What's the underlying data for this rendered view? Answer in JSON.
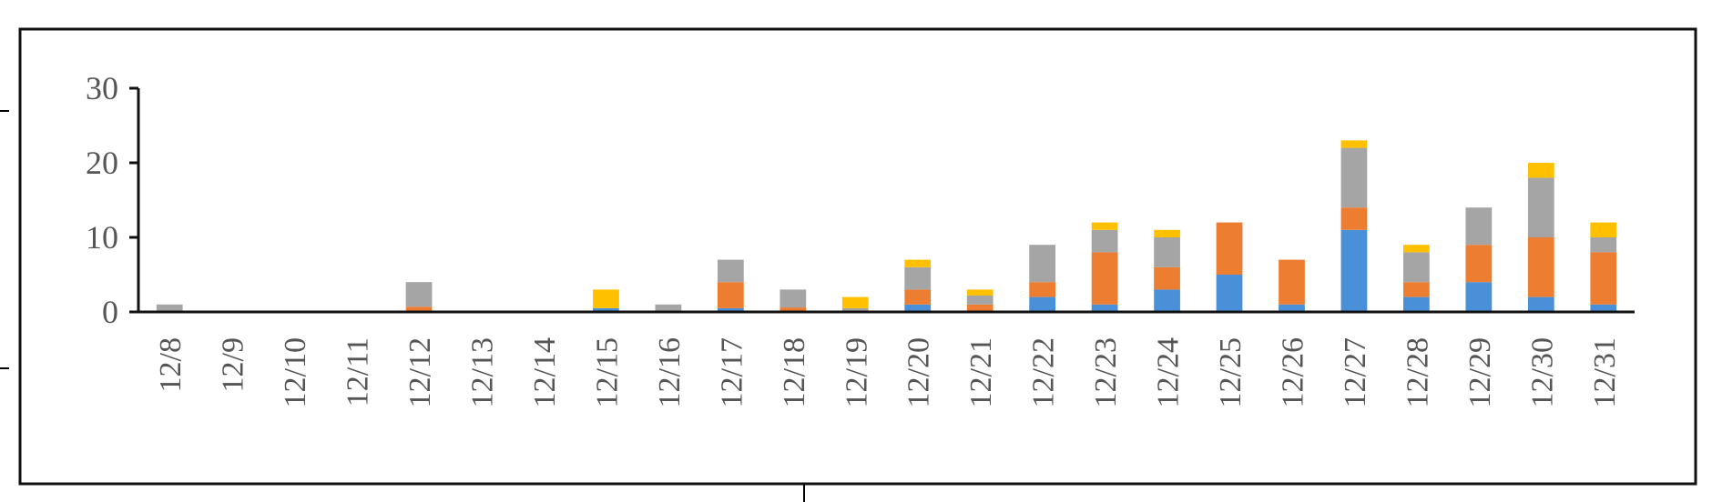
{
  "chart_data": {
    "type": "bar",
    "stacked": true,
    "categories": [
      "12/8",
      "12/9",
      "12/10",
      "12/11",
      "12/12",
      "12/13",
      "12/14",
      "12/15",
      "12/16",
      "12/17",
      "12/18",
      "12/19",
      "12/20",
      "12/21",
      "12/22",
      "12/23",
      "12/24",
      "12/25",
      "12/26",
      "12/27",
      "12/28",
      "12/29",
      "12/30",
      "12/31"
    ],
    "series": [
      {
        "color": "#4a90d9",
        "values": [
          0,
          0,
          0,
          0,
          0,
          0,
          0,
          0.5,
          0,
          0.5,
          0,
          0,
          1,
          0,
          2,
          1,
          3,
          5,
          1,
          11,
          2,
          4,
          2,
          1
        ]
      },
      {
        "color": "#ed7d31",
        "values": [
          0,
          0,
          0,
          0,
          0.7,
          0,
          0,
          0,
          0,
          3.5,
          0.6,
          0,
          2,
          1,
          2,
          7,
          3,
          7,
          6,
          3,
          2,
          5,
          8,
          7
        ]
      },
      {
        "color": "#a5a5a5",
        "values": [
          1,
          0,
          0,
          0,
          3.3,
          0,
          0,
          0,
          1,
          3,
          2.4,
          0.5,
          3,
          1.2,
          5,
          3,
          4,
          0,
          0,
          8,
          4,
          5,
          8,
          2
        ]
      },
      {
        "color": "#ffc000",
        "values": [
          0,
          0,
          0,
          0,
          0,
          0,
          0,
          2.5,
          0,
          0,
          0,
          1.5,
          1,
          0.8,
          0,
          1,
          1,
          0,
          0,
          1,
          1,
          0,
          2,
          2
        ]
      }
    ],
    "yticks": [
      0,
      10,
      20,
      30
    ],
    "ylim": [
      0,
      30
    ],
    "title": "",
    "xlabel": "",
    "ylabel": "",
    "grid": false,
    "legend": "none"
  }
}
